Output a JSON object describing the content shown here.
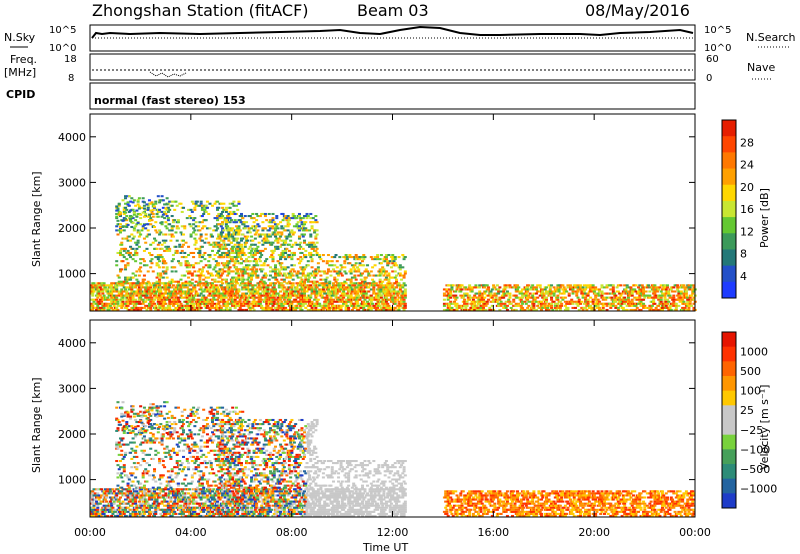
{
  "header": {
    "station": "Zhongshan Station (fitACF)",
    "beam": "Beam 03",
    "date": "08/May/2016"
  },
  "top_panels": {
    "nsky": {
      "label": "N.Sky",
      "ticks": [
        "10^5",
        "10^0"
      ]
    },
    "nsearch": {
      "label": "N.Search",
      "ticks": [
        "10^5",
        "10^0"
      ]
    },
    "freq": {
      "label_line1": "Freq.",
      "label_line2": "[MHz]",
      "ticks": [
        "18",
        "8"
      ]
    },
    "nave": {
      "label": "Nave",
      "ticks": [
        "60",
        "0"
      ]
    },
    "cpid": {
      "label": "CPID",
      "value": "normal (fast stereo) 153"
    }
  },
  "chart_data": [
    {
      "type": "heatmap",
      "name": "power",
      "ylabel": "Slant Range [km]",
      "xlabel": "Time UT",
      "x_ticks": [
        "00:00",
        "04:00",
        "08:00",
        "12:00",
        "16:00",
        "20:00",
        "00:00"
      ],
      "y_ticks": [
        1000,
        2000,
        3000,
        4000
      ],
      "ylim": [
        180,
        4500
      ],
      "xlim_hours": [
        0,
        24
      ],
      "colorbar": {
        "label": "Power [dB]",
        "ticks": [
          "4",
          "8",
          "12",
          "16",
          "20",
          "24",
          "28"
        ],
        "colors": [
          "#1e3cff",
          "#2350c8",
          "#237878",
          "#3c9a5a",
          "#64c832",
          "#c8e632",
          "#ffd700",
          "#ffa000",
          "#ff7800",
          "#ff4600",
          "#e61e00"
        ]
      }
    },
    {
      "type": "heatmap",
      "name": "velocity",
      "ylabel": "Slant Range [km]",
      "xlabel": "Time UT",
      "x_ticks": [
        "00:00",
        "04:00",
        "08:00",
        "12:00",
        "16:00",
        "20:00",
        "00:00"
      ],
      "y_ticks": [
        1000,
        2000,
        3000,
        4000
      ],
      "ylim": [
        180,
        4500
      ],
      "xlim_hours": [
        0,
        24
      ],
      "colorbar": {
        "label": "Velocity [m s⁻¹]",
        "ticks": [
          "1000",
          "500",
          "100",
          "25",
          "−25",
          "−100",
          "−500",
          "−1000"
        ],
        "colors": [
          "#1e3cc8",
          "#2364a0",
          "#2d8c78",
          "#46a05a",
          "#78d23c",
          "#c8c8c8",
          "#c8c8c8",
          "#ffc800",
          "#ff9600",
          "#ff6400",
          "#ff3200",
          "#e61400"
        ]
      }
    }
  ],
  "xlabel_bottom": "Time UT"
}
